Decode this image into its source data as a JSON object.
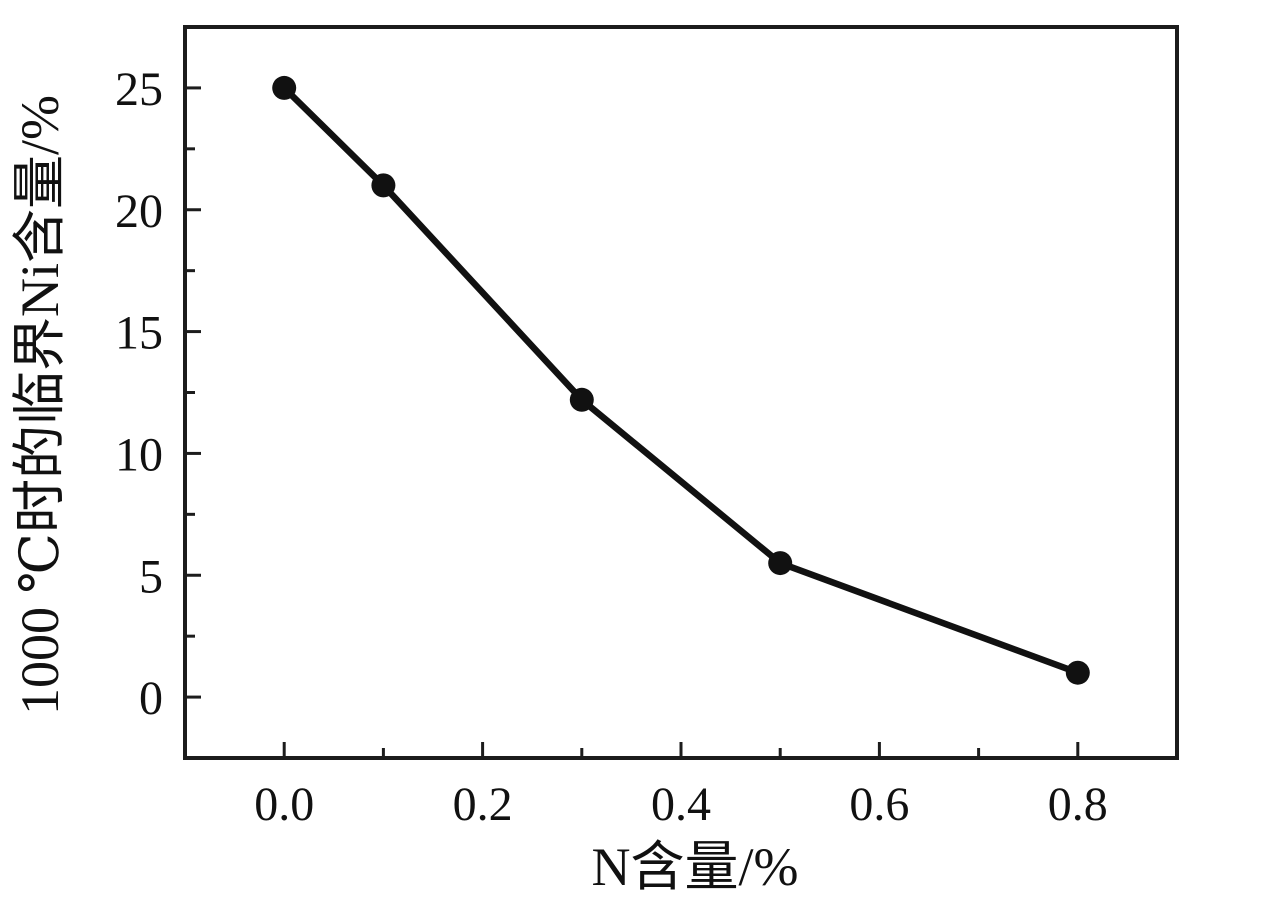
{
  "chart_data": {
    "type": "line",
    "title": "",
    "xlabel": "N含量/%",
    "ylabel": "1000 ℃时的临界Ni含量/%",
    "x": [
      0.0,
      0.1,
      0.3,
      0.5,
      0.8
    ],
    "y": [
      25,
      21,
      12.2,
      5.5,
      1.0
    ],
    "xlim": [
      -0.1,
      0.9
    ],
    "ylim": [
      -2.5,
      27.5
    ],
    "x_major_ticks": [
      0.0,
      0.2,
      0.4,
      0.6,
      0.8
    ],
    "x_tick_labels": [
      "0.0",
      "0.2",
      "0.4",
      "0.6",
      "0.8"
    ],
    "x_minor_ticks": [
      0.1,
      0.3,
      0.5,
      0.7
    ],
    "y_major_ticks": [
      0,
      5,
      10,
      15,
      20,
      25
    ],
    "y_tick_labels": [
      "0",
      "5",
      "10",
      "15",
      "20",
      "25"
    ],
    "y_minor_ticks": [
      2.5,
      7.5,
      12.5,
      17.5,
      22.5
    ],
    "grid": false,
    "legend": null,
    "marker": "circle",
    "line_color": "#111111",
    "marker_color": "#111111",
    "frame_color": "#1c1c1c",
    "background": "#ffffff"
  }
}
